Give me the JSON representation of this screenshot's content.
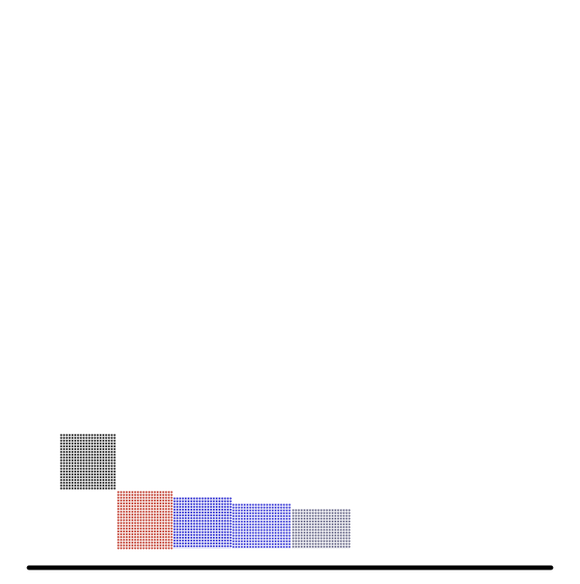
{
  "scene": {
    "background": "#ffffff",
    "ground": {
      "color": "#000000"
    },
    "blocks": [
      {
        "name": "black-block",
        "color": "#1a1a1a"
      },
      {
        "name": "red-block",
        "color": "#c0392b"
      },
      {
        "name": "blue-block-1",
        "color": "#2a2ad0"
      },
      {
        "name": "blue-block-2",
        "color": "#3b3bd6"
      },
      {
        "name": "gray-block",
        "color": "#6a6a8a"
      }
    ]
  }
}
